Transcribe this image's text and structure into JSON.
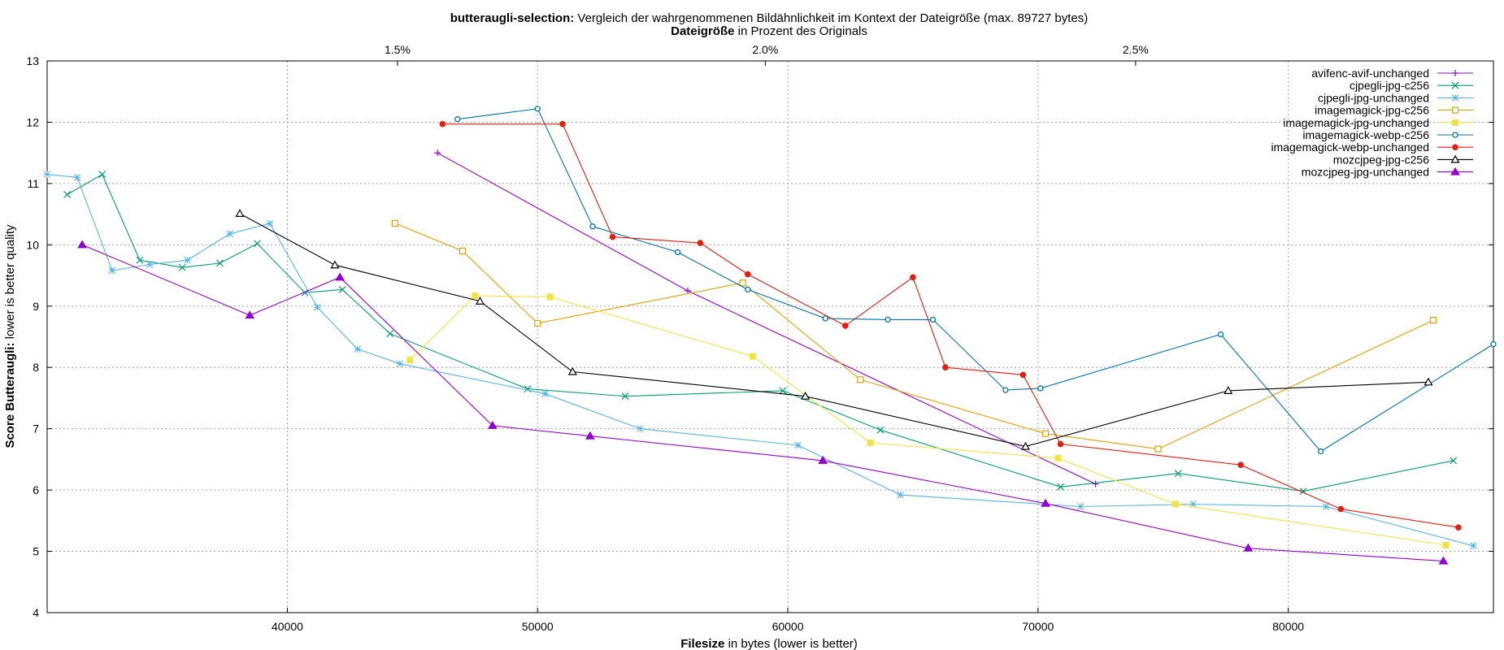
{
  "chart_data": {
    "type": "line",
    "title": {
      "bold": "butteraugli-selection:",
      "rest": " Vergleich der wahrgenommenen Bildähnlichkeit im Kontext der Dateigröße (max. 89727 bytes)"
    },
    "x2label": {
      "bold": "Dateigröße",
      "rest": " in Prozent des Originals"
    },
    "xlabel": {
      "bold": "Filesize",
      "rest": " in bytes (lower is better)"
    },
    "ylabel": {
      "bold": "Score Butteraugli:",
      "rest": " lower is better quality"
    },
    "xlim": [
      30400,
      88200
    ],
    "ylim": [
      4,
      13
    ],
    "x_ticks": [
      40000,
      50000,
      60000,
      70000,
      80000
    ],
    "y_ticks": [
      4,
      5,
      6,
      7,
      8,
      9,
      10,
      11,
      12,
      13
    ],
    "x2_ticks": [
      {
        "label": "1.5%",
        "value": 44400
      },
      {
        "label": "2.0%",
        "value": 59100
      },
      {
        "label": "2.5%",
        "value": 73900
      }
    ],
    "grid": true,
    "legend_position": "top-right",
    "series": [
      {
        "name": "avifenc-avif-unchanged",
        "color": "#9400d3",
        "marker": "plus",
        "points": [
          [
            46000,
            11.5
          ],
          [
            56000,
            9.25
          ],
          [
            72300,
            6.1
          ]
        ]
      },
      {
        "name": "cjpegli-jpg-c256",
        "color": "#009e73",
        "marker": "cross",
        "points": [
          [
            31200,
            10.82
          ],
          [
            32600,
            11.15
          ],
          [
            34100,
            9.75
          ],
          [
            35800,
            9.63
          ],
          [
            37300,
            9.7
          ],
          [
            38800,
            10.02
          ],
          [
            40700,
            9.22
          ],
          [
            42200,
            9.27
          ],
          [
            44100,
            8.55
          ],
          [
            49600,
            7.65
          ],
          [
            53500,
            7.53
          ],
          [
            59800,
            7.62
          ],
          [
            63700,
            6.98
          ],
          [
            70900,
            6.05
          ],
          [
            75600,
            6.27
          ],
          [
            80600,
            5.98
          ],
          [
            86600,
            6.48
          ]
        ]
      },
      {
        "name": "cjpegli-jpg-unchanged",
        "color": "#56b4e9",
        "marker": "star",
        "points": [
          [
            30400,
            11.15
          ],
          [
            31600,
            11.1
          ],
          [
            33000,
            9.58
          ],
          [
            34500,
            9.68
          ],
          [
            36000,
            9.75
          ],
          [
            37700,
            10.18
          ],
          [
            39300,
            10.35
          ],
          [
            41200,
            8.98
          ],
          [
            42800,
            8.3
          ],
          [
            44500,
            8.06
          ],
          [
            50300,
            7.57
          ],
          [
            54100,
            7.0
          ],
          [
            60400,
            6.73
          ],
          [
            64500,
            5.92
          ],
          [
            71700,
            5.73
          ],
          [
            76200,
            5.77
          ],
          [
            81500,
            5.73
          ],
          [
            87400,
            5.09
          ]
        ]
      },
      {
        "name": "imagemagick-jpg-c256",
        "color": "#e69f00",
        "marker": "square",
        "points": [
          [
            44300,
            10.35
          ],
          [
            47000,
            9.9
          ],
          [
            50000,
            8.72
          ],
          [
            58200,
            9.38
          ],
          [
            62900,
            7.8
          ],
          [
            70300,
            6.92
          ],
          [
            74800,
            6.67
          ],
          [
            85800,
            8.77
          ]
        ]
      },
      {
        "name": "imagemagick-jpg-unchanged",
        "color": "#f0e442",
        "marker": "filled-square",
        "points": [
          [
            44900,
            8.12
          ],
          [
            47500,
            9.17
          ],
          [
            50500,
            9.15
          ],
          [
            58600,
            8.18
          ],
          [
            63300,
            6.77
          ],
          [
            70800,
            6.52
          ],
          [
            75500,
            5.77
          ],
          [
            86300,
            5.1
          ]
        ]
      },
      {
        "name": "imagemagick-webp-c256",
        "color": "#0072b2",
        "marker": "circle",
        "points": [
          [
            46800,
            12.05
          ],
          [
            50000,
            12.22
          ],
          [
            52200,
            10.3
          ],
          [
            55600,
            9.88
          ],
          [
            58400,
            9.27
          ],
          [
            61500,
            8.8
          ],
          [
            64000,
            8.78
          ],
          [
            65800,
            8.78
          ],
          [
            68700,
            7.63
          ],
          [
            70100,
            7.66
          ],
          [
            77300,
            8.54
          ],
          [
            81300,
            6.63
          ],
          [
            88200,
            8.38
          ]
        ]
      },
      {
        "name": "imagemagick-webp-unchanged",
        "color": "#e51e10",
        "marker": "filled-circle",
        "points": [
          [
            46200,
            11.97
          ],
          [
            51000,
            11.97
          ],
          [
            53000,
            10.13
          ],
          [
            56500,
            10.03
          ],
          [
            58400,
            9.52
          ],
          [
            62300,
            8.68
          ],
          [
            65000,
            9.47
          ],
          [
            66300,
            8.0
          ],
          [
            69400,
            7.88
          ],
          [
            70900,
            6.75
          ],
          [
            78100,
            6.41
          ],
          [
            82100,
            5.69
          ],
          [
            86800,
            5.39
          ]
        ]
      },
      {
        "name": "mozcjpeg-jpg-c256",
        "color": "#000000",
        "marker": "triangle",
        "points": [
          [
            38100,
            10.51
          ],
          [
            41900,
            9.67
          ],
          [
            47700,
            9.08
          ],
          [
            51400,
            7.93
          ],
          [
            60700,
            7.53
          ],
          [
            69500,
            6.71
          ],
          [
            77600,
            7.62
          ],
          [
            85600,
            7.76
          ]
        ]
      },
      {
        "name": "mozcjpeg-jpg-unchanged",
        "color": "#9400d3",
        "marker": "filled-triangle",
        "points": [
          [
            31800,
            10.0
          ],
          [
            38500,
            8.85
          ],
          [
            42100,
            9.47
          ],
          [
            48200,
            7.05
          ],
          [
            52100,
            6.88
          ],
          [
            61400,
            6.48
          ],
          [
            70300,
            5.78
          ],
          [
            78400,
            5.05
          ],
          [
            86200,
            4.84
          ]
        ]
      }
    ]
  }
}
